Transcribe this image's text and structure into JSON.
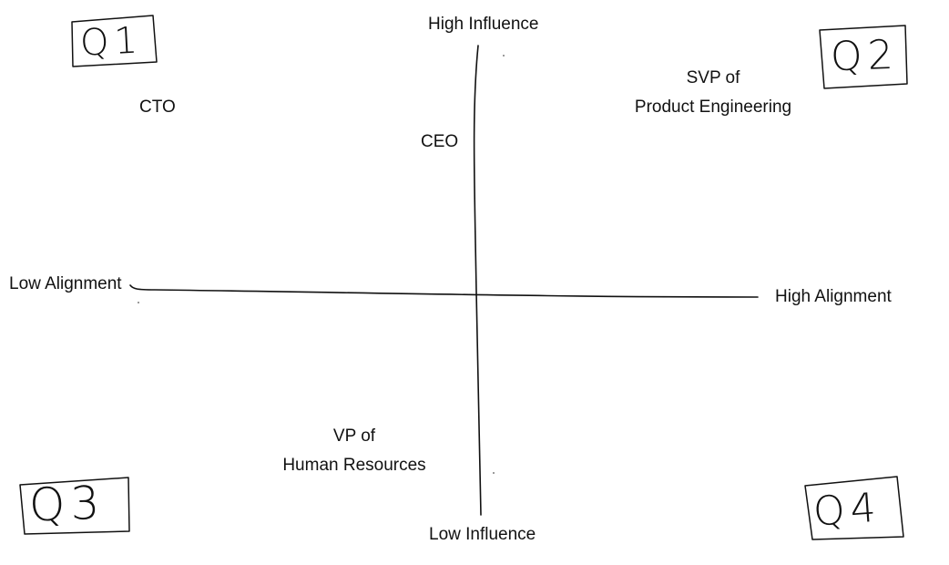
{
  "axes": {
    "top_label": "High Influence",
    "bottom_label": "Low Influence",
    "left_label": "Low Alignment",
    "right_label": "High Alignment"
  },
  "quadrant_tags": {
    "q1": "Q1",
    "q2": "Q2",
    "q3": "Q3",
    "q4": "Q4"
  },
  "stakeholders": {
    "cto": "CTO",
    "ceo": "CEO",
    "svp_line1": "SVP of",
    "svp_line2": "Product Engineering",
    "vp_line1": "VP of",
    "vp_line2": "Human Resources"
  }
}
